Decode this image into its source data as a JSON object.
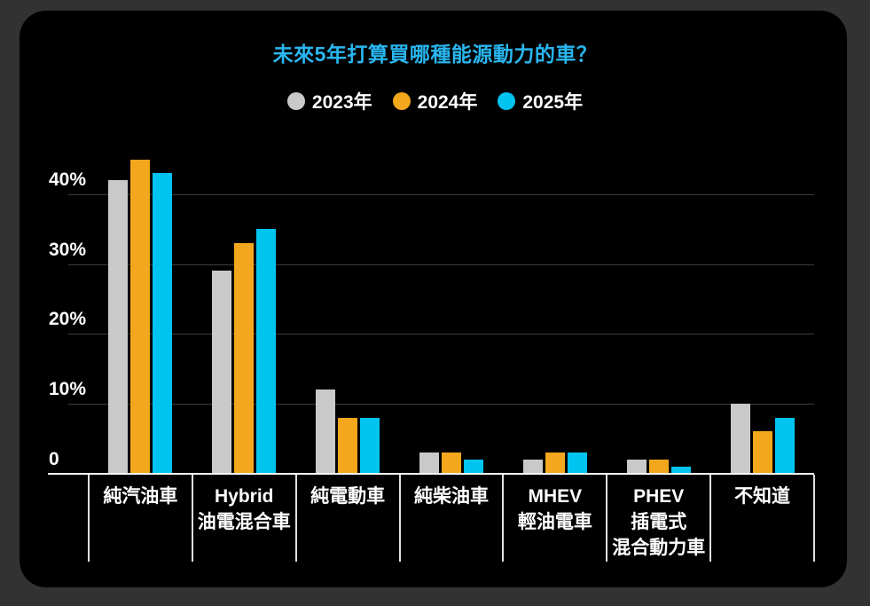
{
  "window": {
    "outer_background": "#323232",
    "panel_background": "#000000"
  },
  "title": {
    "text": "未來5年打算買哪種能源動力的車？",
    "color": "#29b6ef"
  },
  "legend": {
    "items": [
      {
        "label": "2023年",
        "color": "#c9c9c9"
      },
      {
        "label": "2024年",
        "color": "#f2a71c"
      },
      {
        "label": "2025年",
        "color": "#00c4f0"
      }
    ]
  },
  "chart_data": {
    "type": "bar",
    "title": "未來5年打算買哪種能源動力的車？",
    "unit": "%",
    "legend_position": "top",
    "categories": [
      {
        "label": "純汽油車",
        "lines": [
          "純汽油車"
        ]
      },
      {
        "label": "Hybrid 油電混合車",
        "lines": [
          "Hybrid",
          "油電混合車"
        ]
      },
      {
        "label": "純電動車",
        "lines": [
          "純電動車"
        ]
      },
      {
        "label": "純柴油車",
        "lines": [
          "純柴油車"
        ]
      },
      {
        "label": "MHEV 輕油電車",
        "lines": [
          "MHEV",
          "輕油電車"
        ]
      },
      {
        "label": "PHEV 插電式混合動力車",
        "lines": [
          "PHEV",
          "插電式",
          "混合動力車"
        ]
      },
      {
        "label": "不知道",
        "lines": [
          "不知道"
        ]
      }
    ],
    "series": [
      {
        "name": "2023年",
        "color": "#c9c9c9",
        "values": [
          42,
          29,
          12,
          3,
          2,
          2,
          10
        ]
      },
      {
        "name": "2024年",
        "color": "#f2a71c",
        "values": [
          45,
          33,
          8,
          3,
          3,
          2,
          6
        ]
      },
      {
        "name": "2025年",
        "color": "#00c4f0",
        "values": [
          43,
          35,
          8,
          2,
          3,
          1,
          8
        ]
      }
    ],
    "y_axis": {
      "ticks": [
        {
          "label": "0",
          "value": 0
        },
        {
          "label": "10%",
          "value": 10
        },
        {
          "label": "20%",
          "value": 20
        },
        {
          "label": "30%",
          "value": 30
        },
        {
          "label": "40%",
          "value": 40
        }
      ],
      "max": 47.5,
      "grid": true
    },
    "colors": {
      "grid_line": "#3c3c3c",
      "axis_line": "#ffffff",
      "separator": "#e0e0e0",
      "label": "#ffffff"
    }
  }
}
